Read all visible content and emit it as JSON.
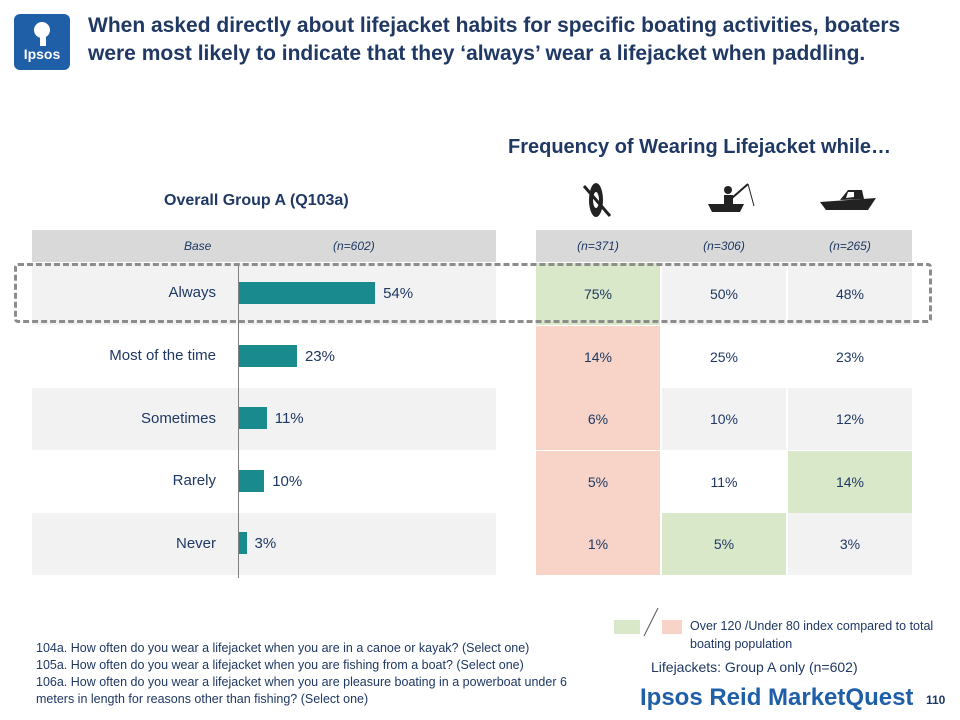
{
  "logo": {
    "text": "Ipsos"
  },
  "title": "When asked directly about lifejacket habits for specific boating activities, boaters were most likely to indicate that they ‘always’ wear a lifejacket when paddling.",
  "right_title": "Frequency of Wearing Lifejacket while…",
  "left_title": "Overall Group A (Q103a)",
  "header": {
    "base_label": "Base",
    "overall_n": "(n=602)",
    "activity_n": [
      "(n=371)",
      "(n=306)",
      "(n=265)"
    ]
  },
  "icons": [
    "canoe-icon",
    "fishing-boat-icon",
    "powerboat-icon"
  ],
  "colors": {
    "bar": "#198a8d",
    "green": "#d9e8c9",
    "red": "#f7d4c7",
    "stripe": "#f2f2f2"
  },
  "chart_data": {
    "type": "bar",
    "orientation": "horizontal",
    "categories": [
      "Always",
      "Most of the time",
      "Sometimes",
      "Rarely",
      "Never"
    ],
    "values": [
      54,
      23,
      11,
      10,
      3
    ],
    "value_labels": [
      "54%",
      "23%",
      "11%",
      "10%",
      "3%"
    ],
    "title": "Overall Group A (Q103a)",
    "xlim": [
      0,
      100
    ]
  },
  "table": {
    "rows": [
      {
        "cells": [
          "75%",
          "50%",
          "48%"
        ],
        "highlight": [
          "green",
          "none",
          "none"
        ]
      },
      {
        "cells": [
          "14%",
          "25%",
          "23%"
        ],
        "highlight": [
          "red",
          "none",
          "none"
        ]
      },
      {
        "cells": [
          "6%",
          "10%",
          "12%"
        ],
        "highlight": [
          "red",
          "none",
          "none"
        ]
      },
      {
        "cells": [
          "5%",
          "11%",
          "14%"
        ],
        "highlight": [
          "red",
          "none",
          "green"
        ]
      },
      {
        "cells": [
          "1%",
          "5%",
          "3%"
        ],
        "highlight": [
          "red",
          "green",
          "none"
        ]
      }
    ]
  },
  "legend": {
    "text": "Over 120 /Under 80 index compared to total boating population"
  },
  "base_note": "Lifejackets: Group A only (n=602)",
  "footnotes": [
    "104a. How often do you wear a lifejacket when you are in a canoe or kayak? (Select one)",
    "105a. How often do you wear a lifejacket when you are fishing from a boat? (Select one)",
    "106a. How often do you wear a lifejacket when you are pleasure boating in a powerboat under 6 meters in length for reasons other than fishing? (Select one)"
  ],
  "brand": "Ipsos Reid MarketQuest",
  "page_number": "110"
}
